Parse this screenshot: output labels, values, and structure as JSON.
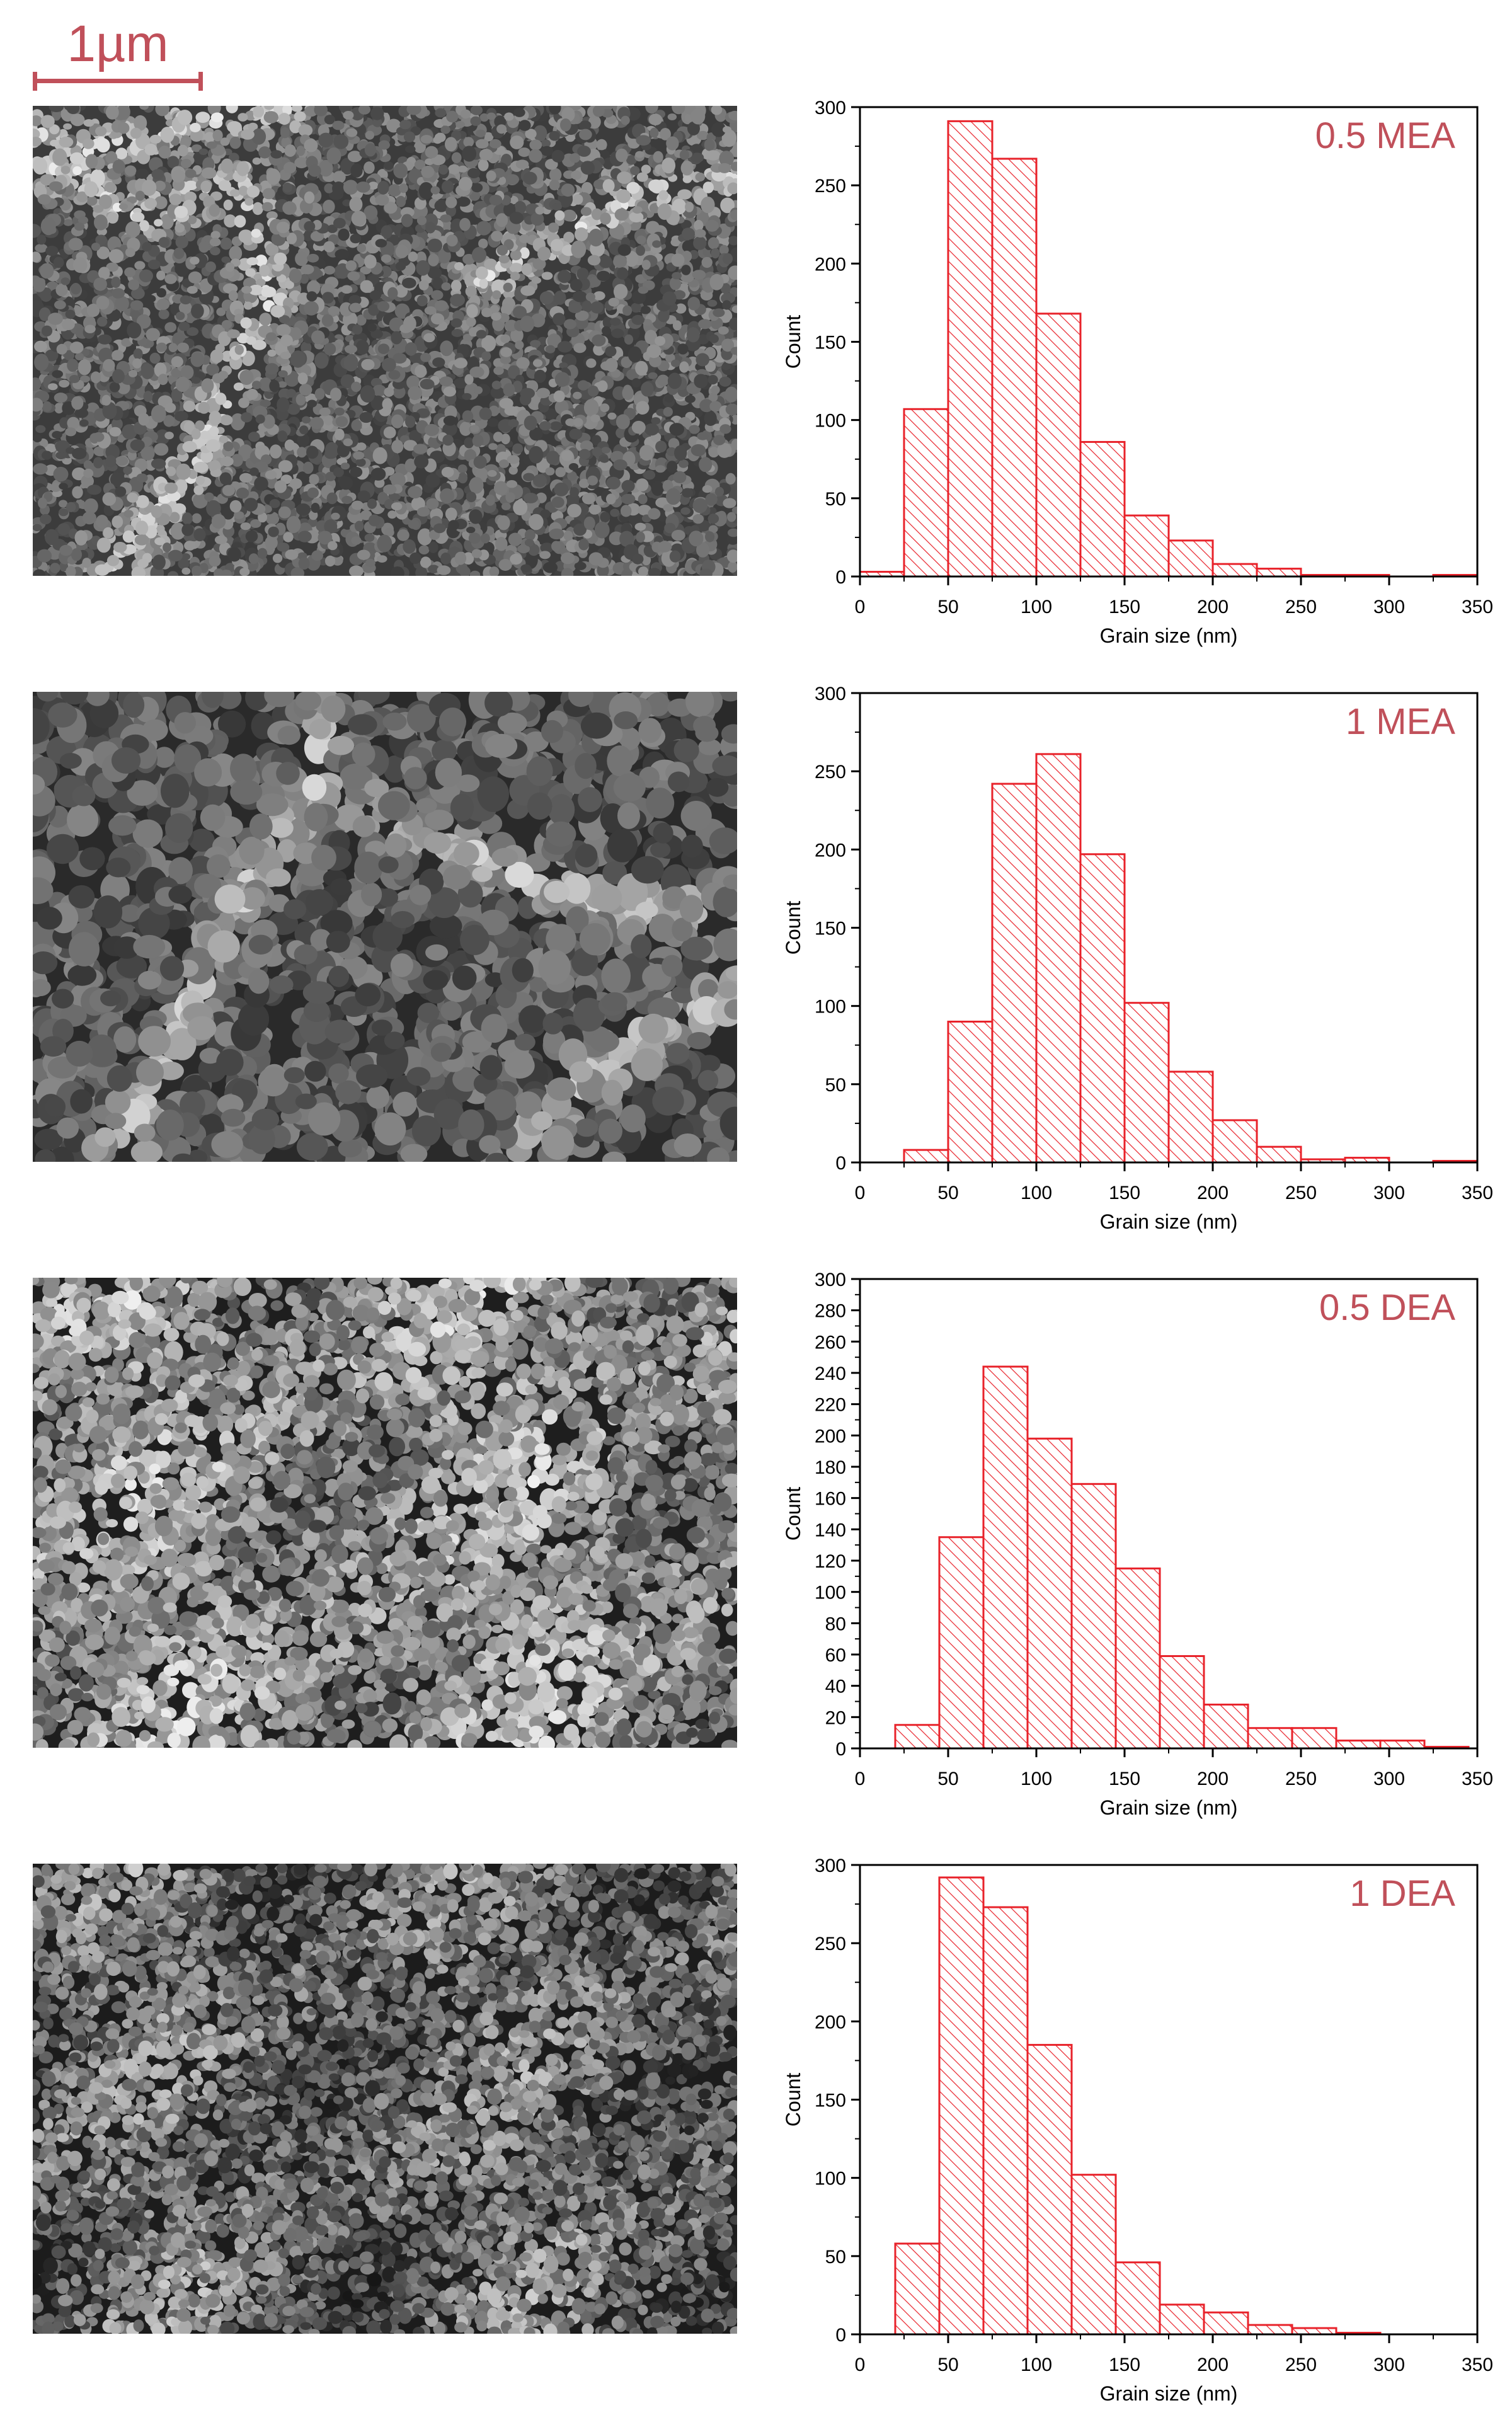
{
  "scale_bar": {
    "label": "1µm"
  },
  "panels": [
    {
      "micrograph": "sem-micrograph-0.5-MEA"
    },
    {
      "micrograph": "sem-micrograph-1-MEA"
    },
    {
      "micrograph": "sem-micrograph-0.5-DEA"
    },
    {
      "micrograph": "sem-micrograph-1-DEA"
    }
  ],
  "colors": {
    "bar": "#e8222a",
    "label": "#c0505a",
    "axis": "#000000"
  },
  "chart_data": [
    {
      "type": "bar",
      "title": "0.5 MEA",
      "xlabel": "Grain size (nm)",
      "ylabel": "Count",
      "xlim": [
        0,
        350
      ],
      "ylim": [
        0,
        300
      ],
      "xticks": [
        0,
        50,
        100,
        150,
        200,
        250,
        300,
        350
      ],
      "yticks": [
        0,
        50,
        100,
        150,
        200,
        250,
        300
      ],
      "bins": [
        [
          0,
          25
        ],
        [
          25,
          50
        ],
        [
          50,
          75
        ],
        [
          75,
          100
        ],
        [
          100,
          125
        ],
        [
          125,
          150
        ],
        [
          150,
          175
        ],
        [
          175,
          200
        ],
        [
          200,
          225
        ],
        [
          225,
          250
        ],
        [
          250,
          275
        ],
        [
          275,
          300
        ],
        [
          300,
          325
        ],
        [
          325,
          350
        ]
      ],
      "values": [
        3,
        107,
        291,
        267,
        168,
        86,
        39,
        23,
        8,
        5,
        1,
        1,
        0,
        1
      ],
      "grid": false,
      "hatch": "diagonal"
    },
    {
      "type": "bar",
      "title": "1 MEA",
      "xlabel": "Grain size (nm)",
      "ylabel": "Count",
      "xlim": [
        0,
        350
      ],
      "ylim": [
        0,
        300
      ],
      "xticks": [
        0,
        50,
        100,
        150,
        200,
        250,
        300,
        350
      ],
      "yticks": [
        0,
        50,
        100,
        150,
        200,
        250,
        300
      ],
      "bins": [
        [
          25,
          50
        ],
        [
          50,
          75
        ],
        [
          75,
          100
        ],
        [
          100,
          125
        ],
        [
          125,
          150
        ],
        [
          150,
          175
        ],
        [
          175,
          200
        ],
        [
          200,
          225
        ],
        [
          225,
          250
        ],
        [
          250,
          275
        ],
        [
          275,
          300
        ],
        [
          300,
          325
        ],
        [
          325,
          350
        ]
      ],
      "values": [
        8,
        90,
        242,
        261,
        197,
        102,
        58,
        27,
        10,
        2,
        3,
        0,
        1
      ],
      "grid": false,
      "hatch": "diagonal"
    },
    {
      "type": "bar",
      "title": "0.5 DEA",
      "xlabel": "Grain size (nm)",
      "ylabel": "Count",
      "xlim": [
        0,
        350
      ],
      "ylim": [
        0,
        300
      ],
      "xticks": [
        0,
        50,
        100,
        150,
        200,
        250,
        300,
        350
      ],
      "yticks": [
        0,
        20,
        40,
        60,
        80,
        100,
        120,
        140,
        160,
        180,
        200,
        220,
        240,
        260,
        280,
        300
      ],
      "bins": [
        [
          20,
          45
        ],
        [
          45,
          70
        ],
        [
          70,
          95
        ],
        [
          95,
          120
        ],
        [
          120,
          145
        ],
        [
          145,
          170
        ],
        [
          170,
          195
        ],
        [
          195,
          220
        ],
        [
          220,
          245
        ],
        [
          245,
          270
        ],
        [
          270,
          295
        ],
        [
          295,
          320
        ],
        [
          320,
          345
        ]
      ],
      "values": [
        15,
        135,
        244,
        198,
        169,
        115,
        59,
        28,
        13,
        13,
        5,
        5,
        1
      ],
      "grid": false,
      "hatch": "diagonal"
    },
    {
      "type": "bar",
      "title": "1 DEA",
      "xlabel": "Grain size (nm)",
      "ylabel": "Count",
      "xlim": [
        0,
        350
      ],
      "ylim": [
        0,
        300
      ],
      "xticks": [
        0,
        50,
        100,
        150,
        200,
        250,
        300,
        350
      ],
      "yticks": [
        0,
        50,
        100,
        150,
        200,
        250,
        300
      ],
      "bins": [
        [
          20,
          45
        ],
        [
          45,
          70
        ],
        [
          70,
          95
        ],
        [
          95,
          120
        ],
        [
          120,
          145
        ],
        [
          145,
          170
        ],
        [
          170,
          195
        ],
        [
          195,
          220
        ],
        [
          220,
          245
        ],
        [
          245,
          270
        ],
        [
          270,
          295
        ],
        [
          295,
          320
        ]
      ],
      "values": [
        58,
        292,
        273,
        185,
        102,
        46,
        19,
        14,
        6,
        4,
        1,
        0
      ],
      "grid": false,
      "hatch": "diagonal"
    }
  ]
}
